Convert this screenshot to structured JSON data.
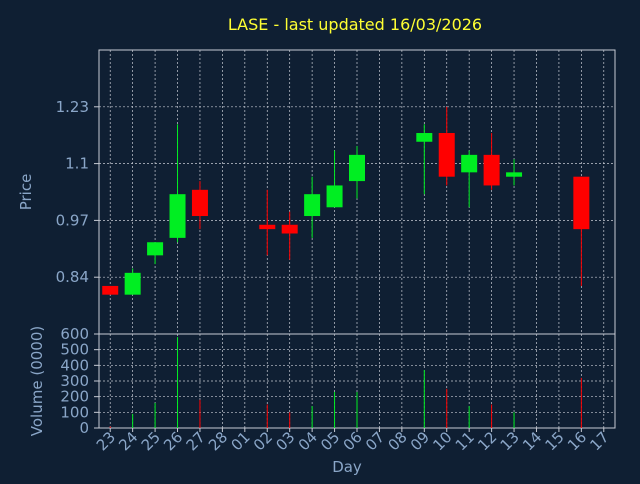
{
  "chart_data": [
    {
      "type": "candlestick",
      "title": "LASE - last updated 16/03/2026",
      "ylabel": "Price",
      "yticks": [
        0.84,
        0.97,
        1.1,
        1.23
      ],
      "ytick_labels": [
        "0.84",
        "0.97",
        "1.1",
        "1.23"
      ],
      "ylim": [
        0.71,
        1.36
      ],
      "grid": true,
      "categories": [
        "23",
        "24",
        "25",
        "26",
        "27",
        "28",
        "01",
        "02",
        "03",
        "04",
        "05",
        "06",
        "07",
        "08",
        "09",
        "10",
        "11",
        "12",
        "13",
        "14",
        "15",
        "16",
        "17"
      ],
      "ohlc": [
        {
          "day": "23",
          "open": 0.82,
          "high": 0.82,
          "low": 0.8,
          "close": 0.8
        },
        {
          "day": "24",
          "open": 0.8,
          "high": 0.86,
          "low": 0.8,
          "close": 0.85
        },
        {
          "day": "25",
          "open": 0.89,
          "high": 0.92,
          "low": 0.87,
          "close": 0.92
        },
        {
          "day": "26",
          "open": 0.93,
          "high": 1.19,
          "low": 0.92,
          "close": 1.03
        },
        {
          "day": "27",
          "open": 1.04,
          "high": 1.06,
          "low": 0.95,
          "close": 0.98
        },
        {
          "day": "02",
          "open": 0.96,
          "high": 1.04,
          "low": 0.89,
          "close": 0.95
        },
        {
          "day": "03",
          "open": 0.96,
          "high": 0.99,
          "low": 0.88,
          "close": 0.94
        },
        {
          "day": "04",
          "open": 0.98,
          "high": 1.07,
          "low": 0.93,
          "close": 1.03
        },
        {
          "day": "05",
          "open": 1.0,
          "high": 1.13,
          "low": 1.0,
          "close": 1.05
        },
        {
          "day": "06",
          "open": 1.06,
          "high": 1.14,
          "low": 1.02,
          "close": 1.12
        },
        {
          "day": "09",
          "open": 1.15,
          "high": 1.19,
          "low": 1.03,
          "close": 1.17
        },
        {
          "day": "10",
          "open": 1.17,
          "high": 1.23,
          "low": 1.05,
          "close": 1.07
        },
        {
          "day": "11",
          "open": 1.08,
          "high": 1.13,
          "low": 1.0,
          "close": 1.12
        },
        {
          "day": "12",
          "open": 1.12,
          "high": 1.17,
          "low": 1.04,
          "close": 1.05
        },
        {
          "day": "13",
          "open": 1.07,
          "high": 1.11,
          "low": 1.05,
          "close": 1.08
        },
        {
          "day": "16",
          "open": 1.07,
          "high": 1.07,
          "low": 0.82,
          "close": 0.95
        }
      ]
    },
    {
      "type": "bar",
      "ylabel": "Volume (0000)",
      "xlabel": "Day",
      "yticks": [
        0,
        100,
        200,
        300,
        400,
        500,
        600
      ],
      "ytick_labels": [
        "0",
        "100",
        "200",
        "300",
        "400",
        "500",
        "600"
      ],
      "ylim": [
        0,
        600
      ],
      "grid": true,
      "categories": [
        "23",
        "24",
        "25",
        "26",
        "27",
        "28",
        "01",
        "02",
        "03",
        "04",
        "05",
        "06",
        "07",
        "08",
        "09",
        "10",
        "11",
        "12",
        "13",
        "14",
        "15",
        "16",
        "17"
      ],
      "values": [
        10,
        90,
        160,
        580,
        180,
        0,
        0,
        150,
        100,
        140,
        230,
        230,
        0,
        0,
        370,
        250,
        140,
        150,
        100,
        0,
        0,
        320,
        0
      ],
      "direction": [
        "down",
        "up",
        "up",
        "up",
        "down",
        "",
        "",
        "down",
        "down",
        "up",
        "up",
        "up",
        "",
        "",
        "up",
        "down",
        "up",
        "down",
        "up",
        "",
        "",
        "down",
        ""
      ]
    }
  ],
  "colors": {
    "background": "#0f1f33",
    "title": "#ffff33",
    "axis_text": "#8aa6c8",
    "axes": "#c7cbd4",
    "grid": "#c7cbd4",
    "up": "#00ee22",
    "down": "#ff0000"
  }
}
